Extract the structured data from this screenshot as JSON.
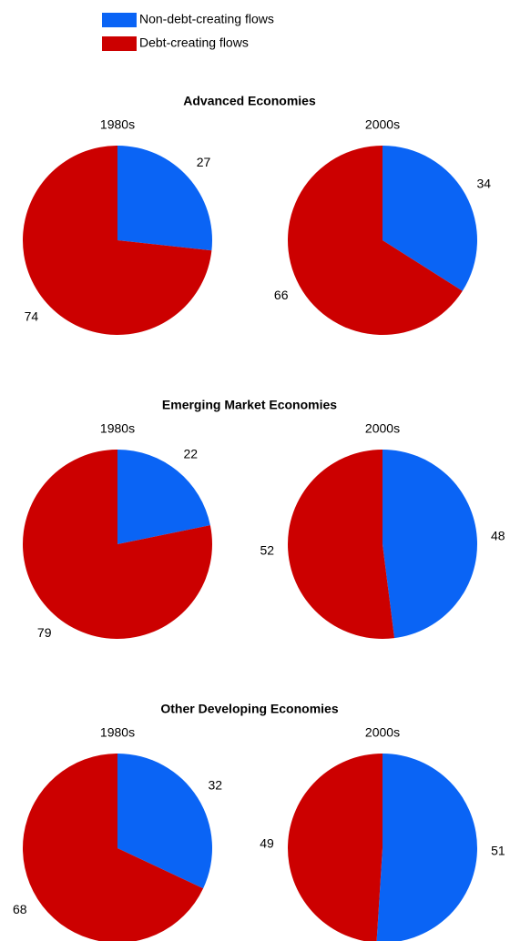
{
  "chart_data": {
    "type": "pie",
    "categories": [
      "Non-debt-creating flows",
      "Debt-creating flows"
    ],
    "colors": [
      "#0a64f5",
      "#cc0000"
    ],
    "groups": [
      {
        "title": "Advanced Economies",
        "pies": [
          {
            "title": "1980s",
            "values": [
              27,
              74
            ]
          },
          {
            "title": "2000s",
            "values": [
              34,
              66
            ]
          }
        ]
      },
      {
        "title": "Emerging Market Economies",
        "pies": [
          {
            "title": "1980s",
            "values": [
              22,
              79
            ]
          },
          {
            "title": "2000s",
            "values": [
              48,
              52
            ]
          }
        ]
      },
      {
        "title": "Other Developing Economies",
        "pies": [
          {
            "title": "1980s",
            "values": [
              32,
              68
            ]
          },
          {
            "title": "2000s",
            "values": [
              51,
              49
            ]
          }
        ]
      }
    ]
  }
}
